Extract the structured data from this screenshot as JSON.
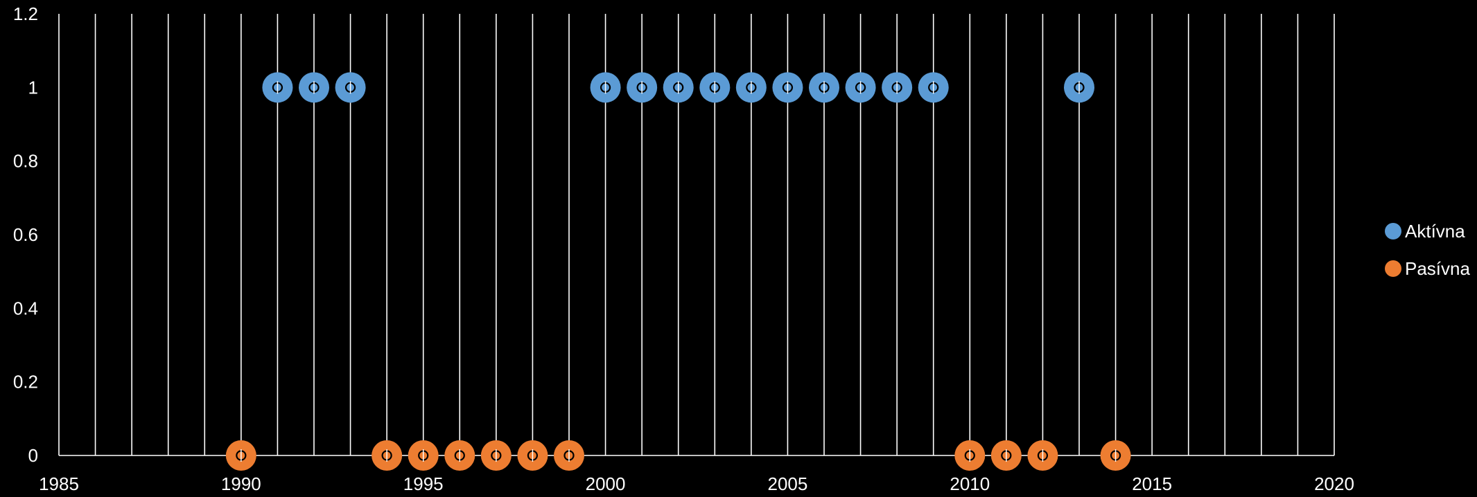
{
  "chart_data": {
    "type": "scatter",
    "xlim": [
      1985,
      2020
    ],
    "ylim": [
      0,
      1.2
    ],
    "x_ticks": [
      1985,
      1990,
      1995,
      2000,
      2005,
      2010,
      2015,
      2020
    ],
    "x_tick_labels": [
      "1985",
      "1990",
      "1995",
      "2000",
      "2005",
      "2010",
      "2015",
      "2020"
    ],
    "y_ticks": [
      0,
      0.2,
      0.4,
      0.6,
      0.8,
      1,
      1.2
    ],
    "y_tick_labels": [
      "0",
      "0.2",
      "0.4",
      "0.6",
      "0.8",
      "1",
      "1.2"
    ],
    "grid": {
      "vertical": true,
      "horizontal": false,
      "vertical_step": 1
    },
    "legend_position": "right",
    "background_color": "#000000",
    "grid_color": "#ffffff",
    "series": [
      {
        "name": "Aktívna",
        "color": "#5b9bd5",
        "points": [
          {
            "x": 1991,
            "y": 1
          },
          {
            "x": 1992,
            "y": 1
          },
          {
            "x": 1993,
            "y": 1
          },
          {
            "x": 2000,
            "y": 1
          },
          {
            "x": 2001,
            "y": 1
          },
          {
            "x": 2002,
            "y": 1
          },
          {
            "x": 2003,
            "y": 1
          },
          {
            "x": 2004,
            "y": 1
          },
          {
            "x": 2005,
            "y": 1
          },
          {
            "x": 2006,
            "y": 1
          },
          {
            "x": 2007,
            "y": 1
          },
          {
            "x": 2008,
            "y": 1
          },
          {
            "x": 2009,
            "y": 1
          },
          {
            "x": 2013,
            "y": 1
          }
        ]
      },
      {
        "name": "Pasívna",
        "color": "#ed7d31",
        "points": [
          {
            "x": 1990,
            "y": 0
          },
          {
            "x": 1994,
            "y": 0
          },
          {
            "x": 1995,
            "y": 0
          },
          {
            "x": 1996,
            "y": 0
          },
          {
            "x": 1997,
            "y": 0
          },
          {
            "x": 1998,
            "y": 0
          },
          {
            "x": 1999,
            "y": 0
          },
          {
            "x": 2010,
            "y": 0
          },
          {
            "x": 2011,
            "y": 0
          },
          {
            "x": 2012,
            "y": 0
          },
          {
            "x": 2014,
            "y": 0
          }
        ]
      }
    ]
  }
}
